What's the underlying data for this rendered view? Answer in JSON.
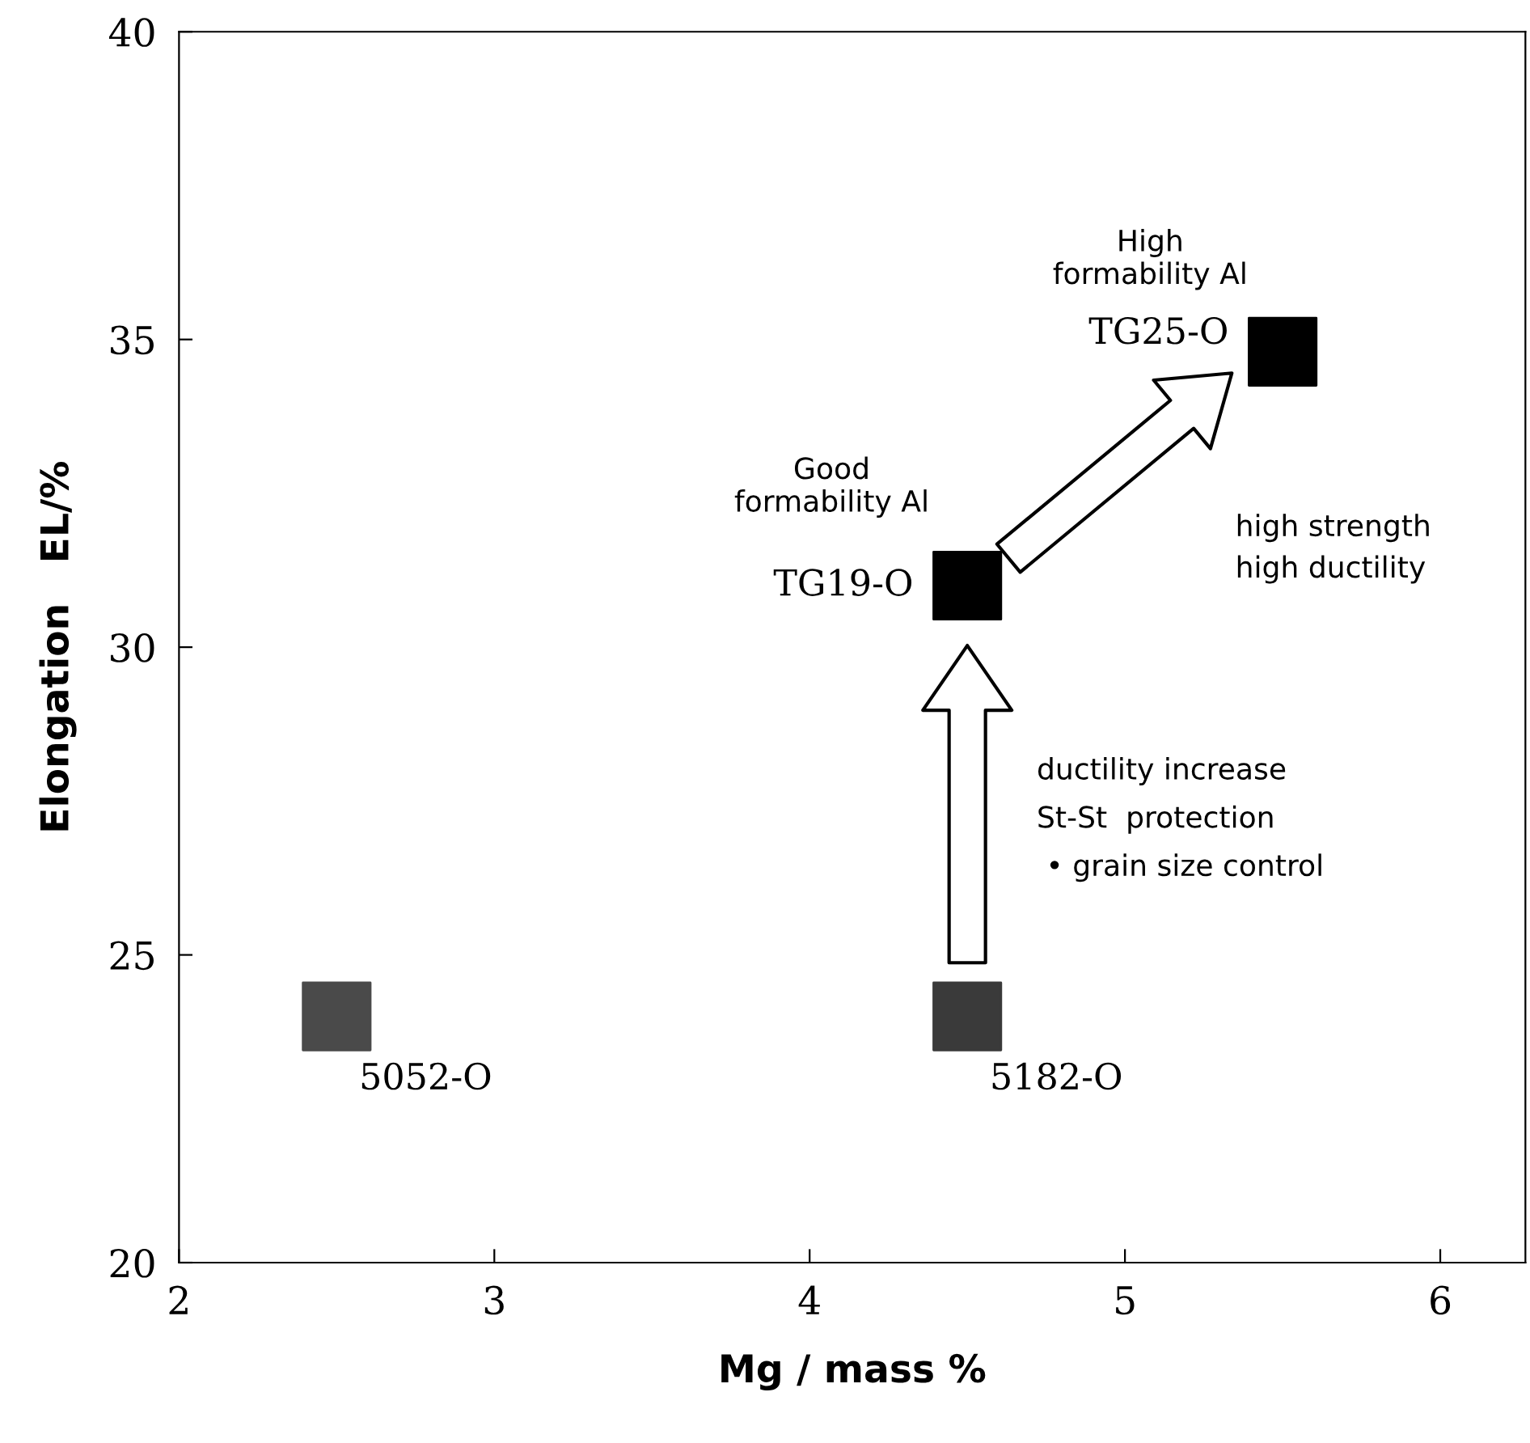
{
  "chart_data": {
    "type": "scatter",
    "xlabel": "Mg / mass %",
    "ylabel": "Elongation   EL/%",
    "x": [
      2.5,
      4.5,
      4.5,
      5.5
    ],
    "values": [
      24,
      24,
      31,
      34.8
    ],
    "colors": [
      "#4a4a4a",
      "#3a3a3a",
      "#000000",
      "#000000"
    ],
    "marker": "square",
    "xlim": [
      2,
      6.27
    ],
    "ylim": [
      20,
      40
    ],
    "xticks": [
      2,
      3,
      4,
      5,
      6
    ],
    "yticks": [
      20,
      25,
      30,
      35,
      40
    ],
    "grid": false,
    "legend": false,
    "annotations": [
      {
        "text": "5052-O",
        "x": 2.5,
        "y": 24
      },
      {
        "text": "5182-O",
        "x": 4.5,
        "y": 24
      },
      {
        "text": "TG19-O",
        "x": 4.5,
        "y": 31
      },
      {
        "text": "TG25-O",
        "x": 5.5,
        "y": 34.8
      },
      "Good\nformability Al",
      "High\nformability Al",
      "high strength\nhigh ductility",
      "ductility increase\nSt-St  protection\n • grain size control"
    ]
  }
}
